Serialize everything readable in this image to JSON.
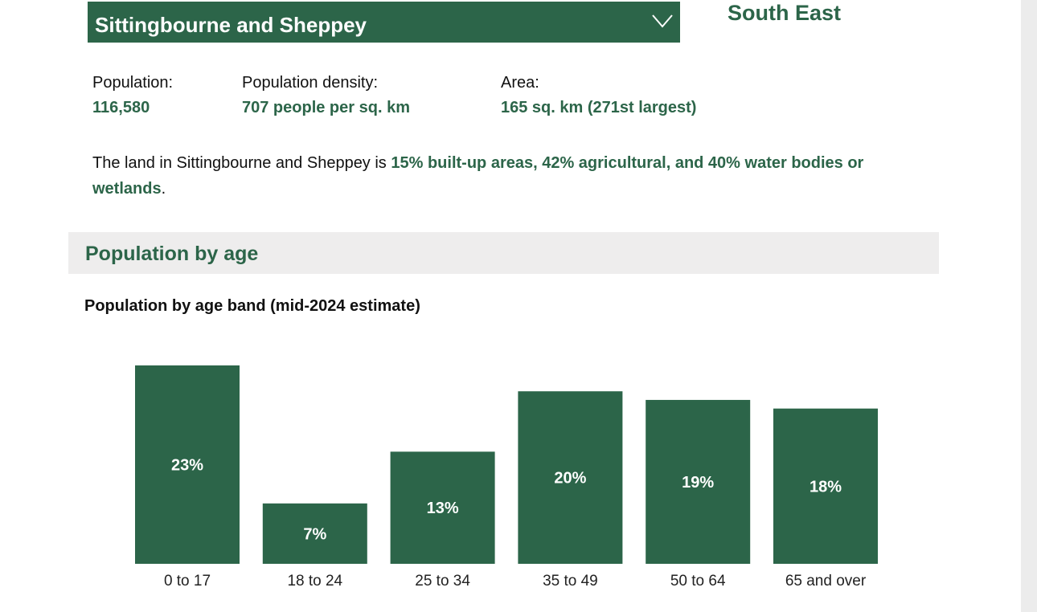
{
  "header": {
    "area_name": "Sittingbourne and Sheppey",
    "region": "South East"
  },
  "stats": [
    {
      "label": "Population:",
      "value": "116,580"
    },
    {
      "label": "Population density:",
      "value": "707 people per sq. km"
    },
    {
      "label": "Area:",
      "value": "165 sq. km (271st largest)"
    }
  ],
  "land": {
    "prefix": "The land in Sittingbourne and Sheppey is ",
    "highlight": "15% built-up areas, 42% agricultural, and 40% water bodies or wetlands",
    "suffix": "."
  },
  "section_title": "Population by age",
  "colors": {
    "accent": "#2c6549"
  },
  "chart_data": {
    "type": "bar",
    "title": "Population by age band (mid-2024 estimate)",
    "categories": [
      "0 to 17",
      "18 to 24",
      "25 to 34",
      "35 to 49",
      "50 to 64",
      "65 and over"
    ],
    "values": [
      23,
      7,
      13,
      20,
      19,
      18
    ],
    "labels": [
      "23%",
      "7%",
      "13%",
      "20%",
      "19%",
      "18%"
    ],
    "unit": "%"
  }
}
